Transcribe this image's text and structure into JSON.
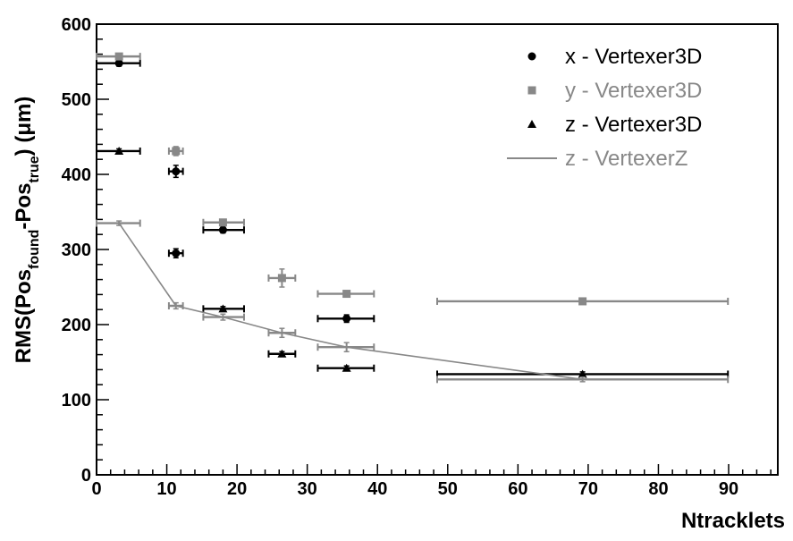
{
  "chart_data": {
    "type": "scatter",
    "title": "",
    "xlabel": "Ntracklets",
    "ylabel": {
      "main": "RMS(Pos",
      "sub1": "found",
      "mid": "-Pos",
      "sub2": "true",
      "unit": ") (μm)"
    },
    "xlim": [
      0,
      97
    ],
    "ylim": [
      0,
      600
    ],
    "xticks": [
      0,
      10,
      20,
      30,
      40,
      50,
      60,
      70,
      80,
      90
    ],
    "yticks": [
      0,
      100,
      200,
      300,
      400,
      500,
      600
    ],
    "grid": false,
    "legend_position": "top-right",
    "series": [
      {
        "name": "x - Vertexer3D",
        "marker": "circle",
        "color": "#000000",
        "points": [
          {
            "x": 3.2,
            "y": 548,
            "xerr": [
              0,
              6.2
            ],
            "yerr": 4
          },
          {
            "x": 11.3,
            "y": 404,
            "xerr": [
              10.3,
              12.3
            ],
            "yerr": 8
          },
          {
            "x": 11.3,
            "y": 295,
            "xerr": [
              10.3,
              12.3
            ],
            "yerr": 6
          },
          {
            "x": 18.0,
            "y": 326,
            "xerr": [
              15.2,
              21.0
            ],
            "yerr": 4
          },
          {
            "x": 35.6,
            "y": 208,
            "xerr": [
              31.5,
              39.5
            ],
            "yerr": 5
          }
        ]
      },
      {
        "name": "y - Vertexer3D",
        "marker": "square",
        "color": "#888888",
        "points": [
          {
            "x": 3.2,
            "y": 557,
            "xerr": [
              0,
              6.2
            ],
            "yerr": 4
          },
          {
            "x": 11.3,
            "y": 431,
            "xerr": [
              10.3,
              12.3
            ],
            "yerr": 6
          },
          {
            "x": 18.0,
            "y": 336,
            "xerr": [
              15.2,
              21.0
            ],
            "yerr": 4
          },
          {
            "x": 26.4,
            "y": 262,
            "xerr": [
              24.5,
              28.3
            ],
            "yerr": 12
          },
          {
            "x": 35.6,
            "y": 241,
            "xerr": [
              31.5,
              39.5
            ],
            "yerr": 4
          },
          {
            "x": 69.2,
            "y": 231,
            "xerr": [
              48.5,
              89.9
            ],
            "yerr": 3
          }
        ]
      },
      {
        "name": "z - Vertexer3D",
        "marker": "triangle",
        "color": "#000000",
        "points": [
          {
            "x": 3.2,
            "y": 431,
            "xerr": [
              0,
              6.2
            ],
            "yerr": 3
          },
          {
            "x": 18.0,
            "y": 221,
            "xerr": [
              15.2,
              21.0
            ],
            "yerr": 3
          },
          {
            "x": 26.4,
            "y": 161,
            "xerr": [
              24.5,
              28.3
            ],
            "yerr": 3
          },
          {
            "x": 35.6,
            "y": 142,
            "xerr": [
              31.5,
              39.5
            ],
            "yerr": 3
          },
          {
            "x": 69.2,
            "y": 134,
            "xerr": [
              48.5,
              89.9
            ],
            "yerr": 3
          }
        ]
      },
      {
        "name": "z - VertexerZ",
        "marker": "line",
        "color": "#888888",
        "points": [
          {
            "x": 3.2,
            "y": 335,
            "xerr": [
              0,
              6.2
            ],
            "yerr": 3
          },
          {
            "x": 11.3,
            "y": 225,
            "xerr": [
              10.3,
              12.3
            ],
            "yerr": 4
          },
          {
            "x": 18.0,
            "y": 210,
            "xerr": [
              15.2,
              21.0
            ],
            "yerr": 4
          },
          {
            "x": 26.4,
            "y": 189,
            "xerr": [
              24.5,
              28.3
            ],
            "yerr": 6
          },
          {
            "x": 35.6,
            "y": 170,
            "xerr": [
              31.5,
              39.5
            ],
            "yerr": 6
          },
          {
            "x": 69.2,
            "y": 127,
            "xerr": [
              48.5,
              89.9
            ],
            "yerr": 3
          }
        ]
      }
    ]
  }
}
